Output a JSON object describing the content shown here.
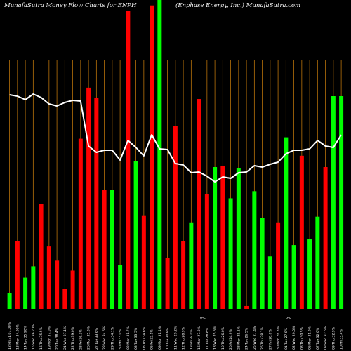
{
  "header": {
    "left": "MunafaSutra  Money Flow  Charts for ENPH",
    "right": "(Enphase    Energy,  Inc.) MunafaSutra.com"
  },
  "chart_data": {
    "type": "bar",
    "title": "MunafaSutra  Money Flow  Charts for ENPH",
    "subtitle": "(Enphase    Energy,  Inc.) MunafaSutra.com",
    "colors": {
      "up": "#00ff00",
      "down": "#ff0000",
      "line": "#ffffff",
      "grid": "#b8720a",
      "background": "#000000"
    },
    "categories": [
      "12 Fri 31.07.00%",
      "13 Mon 34.90%",
      "14 Tue 35.90%",
      "15 Wed 36.70%",
      "16 Thu 35.5%",
      "19 Mon 37.0%",
      "20 Tue 38.4%",
      "21 Wed 37.1%",
      "22 Thu 39.0%",
      "23 Fri 36.3%",
      "26 Mon 35.8%",
      "27 Tue 33.6%",
      "28 Wed 34.6%",
      "29 Thu 34.1%",
      "30 Fri 33.0%",
      "02 Mon 31.7%",
      "03 Tue 33.5%",
      "05 Thu 34.6%",
      "06 Fri 32.1%",
      "09 Mon 31.4%",
      "10 Tue 30.8%",
      "11 Wed 29.2%",
      "12 Thu 28.9%",
      "13 Fri 28.0%",
      "16 Mon 27.3%",
      "17 Tue 26.8%",
      "18 Wed 25.5%",
      "19 Thu 26.0%",
      "20 Fri 24.9%",
      "23 Mon 25.1%",
      "24 Tue 26.5%",
      "25 Wed 27.4%",
      "26 Thu 28.1%",
      "27 Fri 28.0%",
      "30 Mon 26.3%",
      "01 Tue 27.8%",
      "02 Wed 29.0%",
      "03 Thu 30.5%",
      "06 Mon 31.9%",
      "07 Tue 32.0%",
      "08 Wed 32.5%",
      "09 Thu 32.9%",
      "10 Fri 33.4%"
    ],
    "bar_direction": [
      "up",
      "down",
      "up",
      "up",
      "down",
      "down",
      "down",
      "down",
      "down",
      "down",
      "down",
      "down",
      "down",
      "up",
      "up",
      "down",
      "up",
      "down",
      "down",
      "up",
      "down",
      "down",
      "down",
      "up",
      "down",
      "down",
      "up",
      "down",
      "up",
      "up",
      "down",
      "up",
      "up",
      "up",
      "down",
      "up",
      "up",
      "down",
      "up",
      "up",
      "down",
      "up",
      "up"
    ],
    "bar_values": [
      11,
      48,
      22,
      30,
      74,
      44,
      34,
      14,
      27,
      120,
      156,
      149,
      84,
      84,
      31,
      210,
      104,
      66,
      214,
      223,
      36,
      129,
      48,
      61,
      148,
      81,
      100,
      101,
      78,
      99,
      2,
      83,
      64,
      37,
      61,
      121,
      45,
      108,
      49,
      65,
      100,
      150,
      150
    ],
    "line_values": [
      305,
      303,
      298,
      306,
      301,
      292,
      289,
      294,
      297,
      296,
      232,
      223,
      226,
      226,
      212,
      240,
      230,
      218,
      248,
      228,
      227,
      207,
      205,
      194,
      195,
      189,
      181,
      188,
      186,
      194,
      195,
      204,
      202,
      206,
      209,
      221,
      226,
      226,
      228,
      240,
      232,
      230,
      248
    ],
    "annotations": [
      "v%",
      "v%"
    ]
  }
}
